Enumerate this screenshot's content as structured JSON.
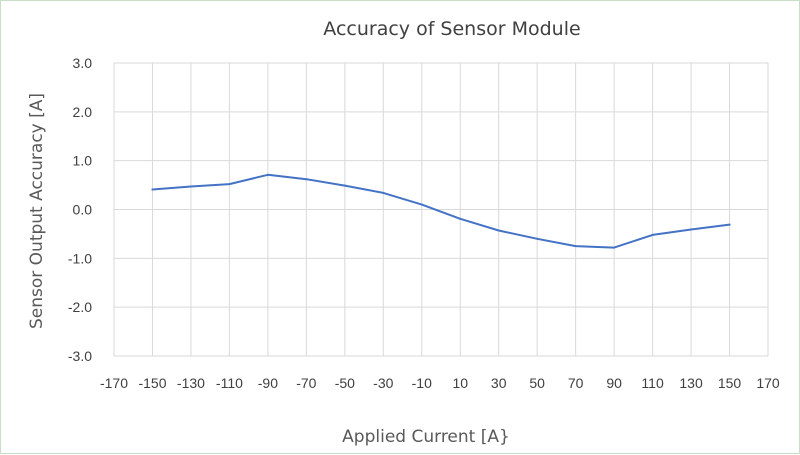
{
  "chart_data": {
    "type": "line",
    "title": "Accuracy of Sensor Module",
    "xlabel": "Applied Current [A}",
    "ylabel": "Sensor Output Accuracy [A]",
    "xlim": [
      -170,
      170
    ],
    "ylim": [
      -3.0,
      3.0
    ],
    "x_ticks": [
      "-170",
      "-150",
      "-130",
      "-110",
      "-90",
      "-70",
      "-50",
      "-30",
      "-10",
      "10",
      "30",
      "50",
      "70",
      "90",
      "110",
      "130",
      "150",
      "170"
    ],
    "y_ticks": [
      "3.0",
      "2.0",
      "1.0",
      "0.0",
      "-1.0",
      "-2.0",
      "-3.0"
    ],
    "grid": true,
    "series": [
      {
        "color": "#4472c4",
        "x": [
          -150,
          -130,
          -110,
          -90,
          -70,
          -50,
          -30,
          -10,
          10,
          30,
          50,
          70,
          90,
          110,
          130,
          150
        ],
        "y": [
          0.41,
          0.47,
          0.52,
          0.71,
          0.62,
          0.49,
          0.34,
          0.1,
          -0.19,
          -0.43,
          -0.6,
          -0.75,
          -0.78,
          -0.52,
          -0.41,
          -0.31
        ]
      }
    ]
  }
}
